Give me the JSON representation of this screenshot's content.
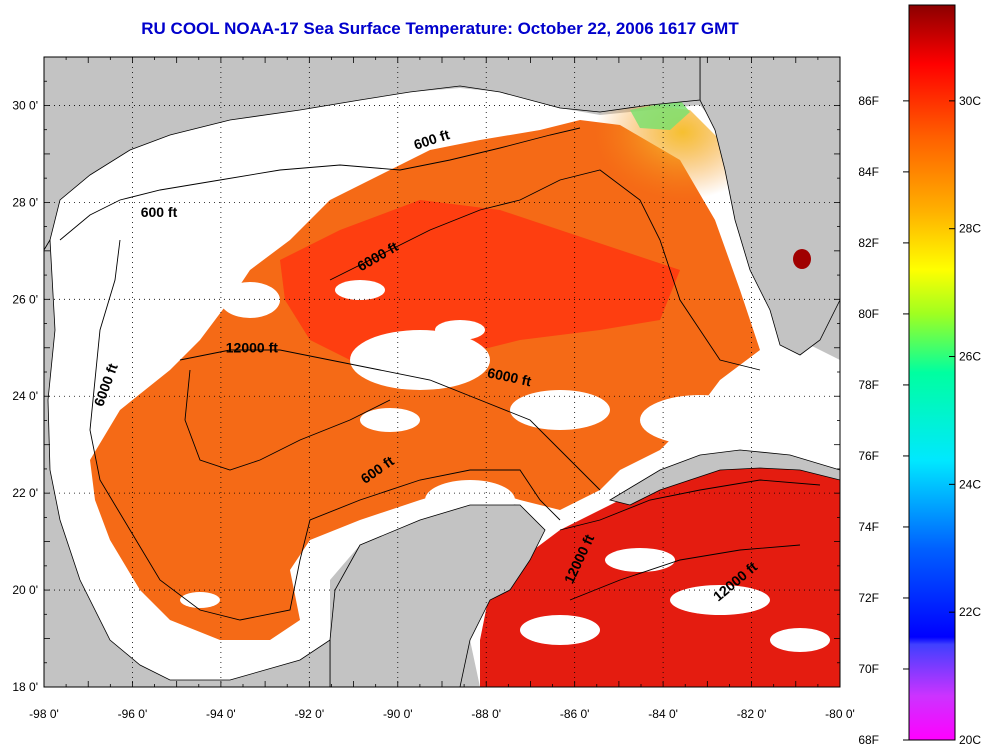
{
  "title": "RU COOL  NOAA-17  Sea Surface Temperature:  October 22, 2006 1617 GMT",
  "colors": {
    "land": "#c3c3c3",
    "cloud": "#ffffff",
    "ocean_deep": "#ff3a10",
    "ocean_warm": "#f56a16",
    "ocean_caribbean": "#e41c10",
    "cool_nearshore": "#f0c020"
  },
  "chart_data": {
    "type": "heatmap",
    "title": "RU COOL  NOAA-17  Sea Surface Temperature:  October 22, 2006 1617 GMT",
    "x_ticks": [
      "-98 0'",
      "-96 0'",
      "-94 0'",
      "-92 0'",
      "-90 0'",
      "-88 0'",
      "-86 0'",
      "-84 0'",
      "-82 0'",
      "-80 0'"
    ],
    "x_values": [
      -98,
      -96,
      -94,
      -92,
      -90,
      -88,
      -86,
      -84,
      -82,
      -80
    ],
    "xlim": [
      -98,
      -80
    ],
    "y_ticks": [
      "30 0'",
      "28 0'",
      "26 0'",
      "24 0'",
      "22 0'",
      "20 0'",
      "18 0'"
    ],
    "y_values": [
      30,
      28,
      26,
      24,
      22,
      20,
      18
    ],
    "ylim": [
      18,
      31
    ],
    "grid": true,
    "colorbar": {
      "fahrenheit_labels": [
        "86F",
        "84F",
        "82F",
        "80F",
        "78F",
        "76F",
        "74F",
        "72F",
        "70F",
        "68F"
      ],
      "fahrenheit_values": [
        86,
        84,
        82,
        80,
        78,
        76,
        74,
        72,
        70,
        68
      ],
      "celsius_labels": [
        "30C",
        "28C",
        "26C",
        "24C",
        "22C",
        "20C"
      ],
      "celsius_values": [
        30,
        28,
        26,
        24,
        22,
        20
      ],
      "range_c": [
        20,
        31.5
      ]
    },
    "contour_labels": [
      {
        "text": "600 ft",
        "lon": -89.2,
        "lat": 29.2,
        "angle": -18
      },
      {
        "text": "600 ft",
        "lon": -95.4,
        "lat": 27.7,
        "angle": 0
      },
      {
        "text": "6000 ft",
        "lon": -90.4,
        "lat": 26.8,
        "angle": -30
      },
      {
        "text": "12000 ft",
        "lon": -93.3,
        "lat": 24.9,
        "angle": 0
      },
      {
        "text": "6000 ft",
        "lon": -96.5,
        "lat": 24.2,
        "angle": -70
      },
      {
        "text": "6000 ft",
        "lon": -87.5,
        "lat": 24.3,
        "angle": 12
      },
      {
        "text": "600 ft",
        "lon": -90.4,
        "lat": 22.4,
        "angle": -35
      },
      {
        "text": "12000 ft",
        "lon": -85.8,
        "lat": 20.6,
        "angle": -65
      },
      {
        "text": "12000 ft",
        "lon": -82.3,
        "lat": 20.1,
        "angle": -40
      }
    ]
  }
}
